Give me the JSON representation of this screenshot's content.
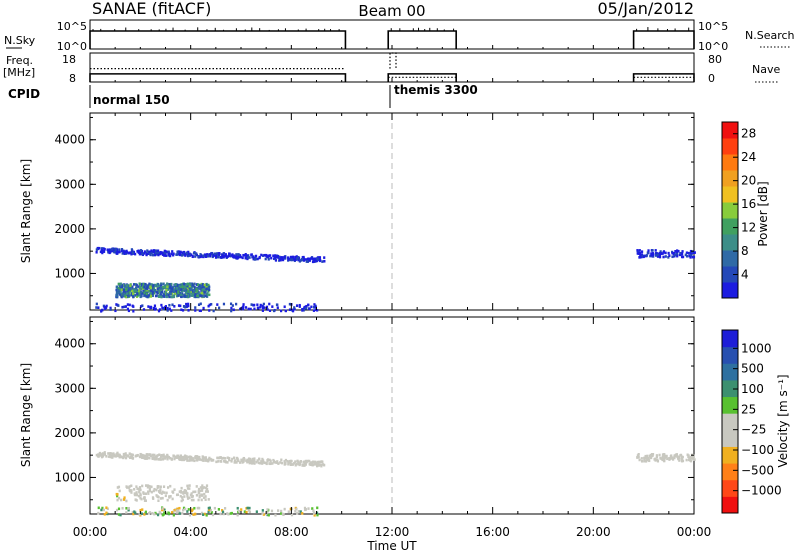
{
  "header": {
    "title": "SANAE (fitACF)",
    "beam": "Beam 00",
    "date": "05/Jan/2012"
  },
  "top_panels": {
    "nsky_label": "N.Sky",
    "nsky_ticks": [
      "10^5",
      "10^0"
    ],
    "nsearch_label": "N.Search",
    "freq_label": "Freq.",
    "freq_unit": "[MHz]",
    "freq_ticks": [
      "18",
      "8"
    ],
    "nave_label": "Nave",
    "nave_ticks": [
      "80",
      "0"
    ],
    "cpid_label": "CPID",
    "cpid_entries": [
      "normal 150",
      "themis 3300"
    ]
  },
  "colors": {
    "power_scale": [
      "#1c1ce0",
      "#2448b8",
      "#2f6aa6",
      "#3c8e88",
      "#40a060",
      "#88cc3c",
      "#f0c020",
      "#f0a020",
      "#ff7a10",
      "#ff4010",
      "#f01010"
    ],
    "velocity_scale": [
      "#1e1ed8",
      "#2850b0",
      "#2e70a0",
      "#3c9070",
      "#58c030",
      "#c8c8c0",
      "#c8c8c0",
      "#f0b020",
      "#ff8018",
      "#ff4818",
      "#f01010"
    ],
    "ground_scatter": "#c8c8c0"
  },
  "chart_data": [
    {
      "type": "heatmap",
      "name": "power_panel",
      "xlabel": "Time UT",
      "ylabel": "Slant Range [km]",
      "x_ticks": [
        "00:00",
        "04:00",
        "08:00",
        "12:00",
        "16:00",
        "20:00",
        "00:00"
      ],
      "y_ticks": [
        "1000",
        "2000",
        "3000",
        "4000"
      ],
      "xlim_hours": [
        0,
        24
      ],
      "ylim_km": [
        180,
        4600
      ],
      "colorbar_label": "Power [dB]",
      "colorbar_ticks": [
        "4",
        "8",
        "12",
        "16",
        "20",
        "24",
        "28"
      ],
      "colorbar_range_db": [
        0,
        30
      ],
      "dashed_line_hour": 12,
      "echo_regions": [
        {
          "t0": 1.0,
          "t1": 4.7,
          "r0": 500,
          "r1": 800,
          "level": "high"
        },
        {
          "t0": 0.2,
          "t1": 9.3,
          "r0": 1250,
          "r1": 1600,
          "level": "low"
        },
        {
          "t0": 0.2,
          "t1": 9.0,
          "r0": 180,
          "r1": 350,
          "level": "low"
        },
        {
          "t0": 21.7,
          "t1": 24.0,
          "r0": 1350,
          "r1": 1700,
          "level": "low"
        }
      ]
    },
    {
      "type": "heatmap",
      "name": "velocity_panel",
      "xlabel": "Time UT",
      "ylabel": "Slant Range [km]",
      "x_ticks": [
        "00:00",
        "04:00",
        "08:00",
        "12:00",
        "16:00",
        "20:00",
        "00:00"
      ],
      "y_ticks": [
        "1000",
        "2000",
        "3000",
        "4000"
      ],
      "xlim_hours": [
        0,
        24
      ],
      "ylim_km": [
        180,
        4600
      ],
      "colorbar_label": "Velocity [m s⁻¹]",
      "colorbar_ticks": [
        "1000",
        "500",
        "100",
        "25",
        "−25",
        "−100",
        "−500",
        "−1000"
      ],
      "dashed_line_hour": 12,
      "echo_regions": [
        {
          "t0": 1.0,
          "t1": 4.7,
          "r0": 500,
          "r1": 850,
          "level": "gs"
        },
        {
          "t0": 0.2,
          "t1": 9.3,
          "r0": 1250,
          "r1": 1600,
          "level": "gs"
        },
        {
          "t0": 0.2,
          "t1": 9.0,
          "r0": 180,
          "r1": 350,
          "level": "mixed"
        },
        {
          "t0": 21.7,
          "t1": 24.0,
          "r0": 1350,
          "r1": 1700,
          "level": "gs"
        }
      ]
    }
  ],
  "timeline": {
    "scan_intervals_hours": [
      [
        0.0,
        10.15
      ],
      [
        11.85,
        14.55
      ],
      [
        21.6,
        24.0
      ]
    ],
    "cpid_switch_hour": 12.0,
    "nsky_level": "10^5",
    "freq_level_mhz": 10.8,
    "nsearch_first_interval_level_mhz": 12.6,
    "nave_level": 13
  }
}
